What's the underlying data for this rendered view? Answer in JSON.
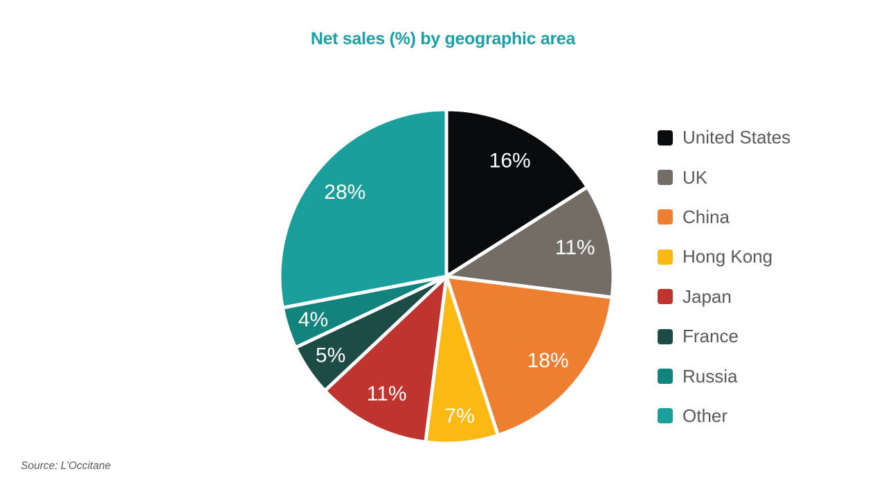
{
  "header": {
    "title": "Net sales (%) by geographic area"
  },
  "footer": {
    "source": "Source: L’Occitane"
  },
  "theme": {
    "background": "#ffffff",
    "title_color": "#1aa0a6",
    "legend_text_color": "#58595b",
    "source_text_color": "#58595b",
    "percent_label_color": "#ffffff",
    "slice_gap_color": "#ffffff"
  },
  "chart_data": {
    "type": "pie",
    "title": "Net sales (%) by geographic area",
    "categories": [
      "United States",
      "UK",
      "China",
      "Hong Kong",
      "Japan",
      "France",
      "Russia",
      "Other"
    ],
    "values": [
      16,
      11,
      18,
      7,
      11,
      5,
      4,
      28
    ],
    "percent_labels": [
      "16%",
      "11%",
      "18%",
      "7%",
      "11%",
      "5%",
      "4%",
      "28%"
    ],
    "colors": [
      "#0a0b0d",
      "#746d66",
      "#ee7f30",
      "#fcb813",
      "#bf342e",
      "#1c4c45",
      "#12837d",
      "#1b9f9c"
    ],
    "start_angle_deg": 0,
    "direction": "clockwise",
    "grid": false,
    "legend_position": "right",
    "source": "Source: L’Occitane"
  }
}
